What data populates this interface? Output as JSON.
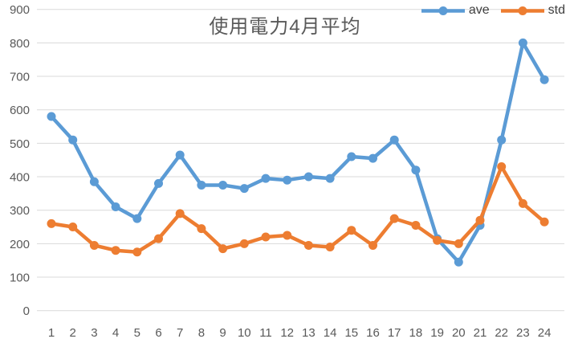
{
  "chart_data": {
    "type": "line",
    "title": "使用電力4月平均",
    "categories": [
      "1",
      "2",
      "3",
      "4",
      "5",
      "6",
      "7",
      "8",
      "9",
      "10",
      "11",
      "12",
      "13",
      "14",
      "15",
      "16",
      "17",
      "18",
      "19",
      "20",
      "21",
      "22",
      "23",
      "24"
    ],
    "series": [
      {
        "name": "ave",
        "color": "#5B9BD5",
        "values": [
          580,
          510,
          385,
          310,
          275,
          380,
          465,
          375,
          375,
          365,
          395,
          390,
          400,
          395,
          460,
          455,
          510,
          420,
          215,
          145,
          255,
          510,
          800,
          690
        ]
      },
      {
        "name": "std",
        "color": "#ED7D31",
        "values": [
          260,
          250,
          195,
          180,
          175,
          215,
          290,
          245,
          185,
          200,
          220,
          225,
          195,
          190,
          240,
          195,
          275,
          255,
          210,
          200,
          270,
          430,
          320,
          265
        ]
      }
    ],
    "xlabel": "",
    "ylabel": "",
    "ylim": [
      0,
      900
    ],
    "yticks": [
      0,
      100,
      200,
      300,
      400,
      500,
      600,
      700,
      800,
      900
    ],
    "grid": true,
    "legend_position": "top-right",
    "grid_color": "#D9D9D9",
    "tick_label_color": "#595959",
    "title_color": "#595959",
    "legend_text_color": "#404040",
    "background": "#FFFFFF"
  }
}
